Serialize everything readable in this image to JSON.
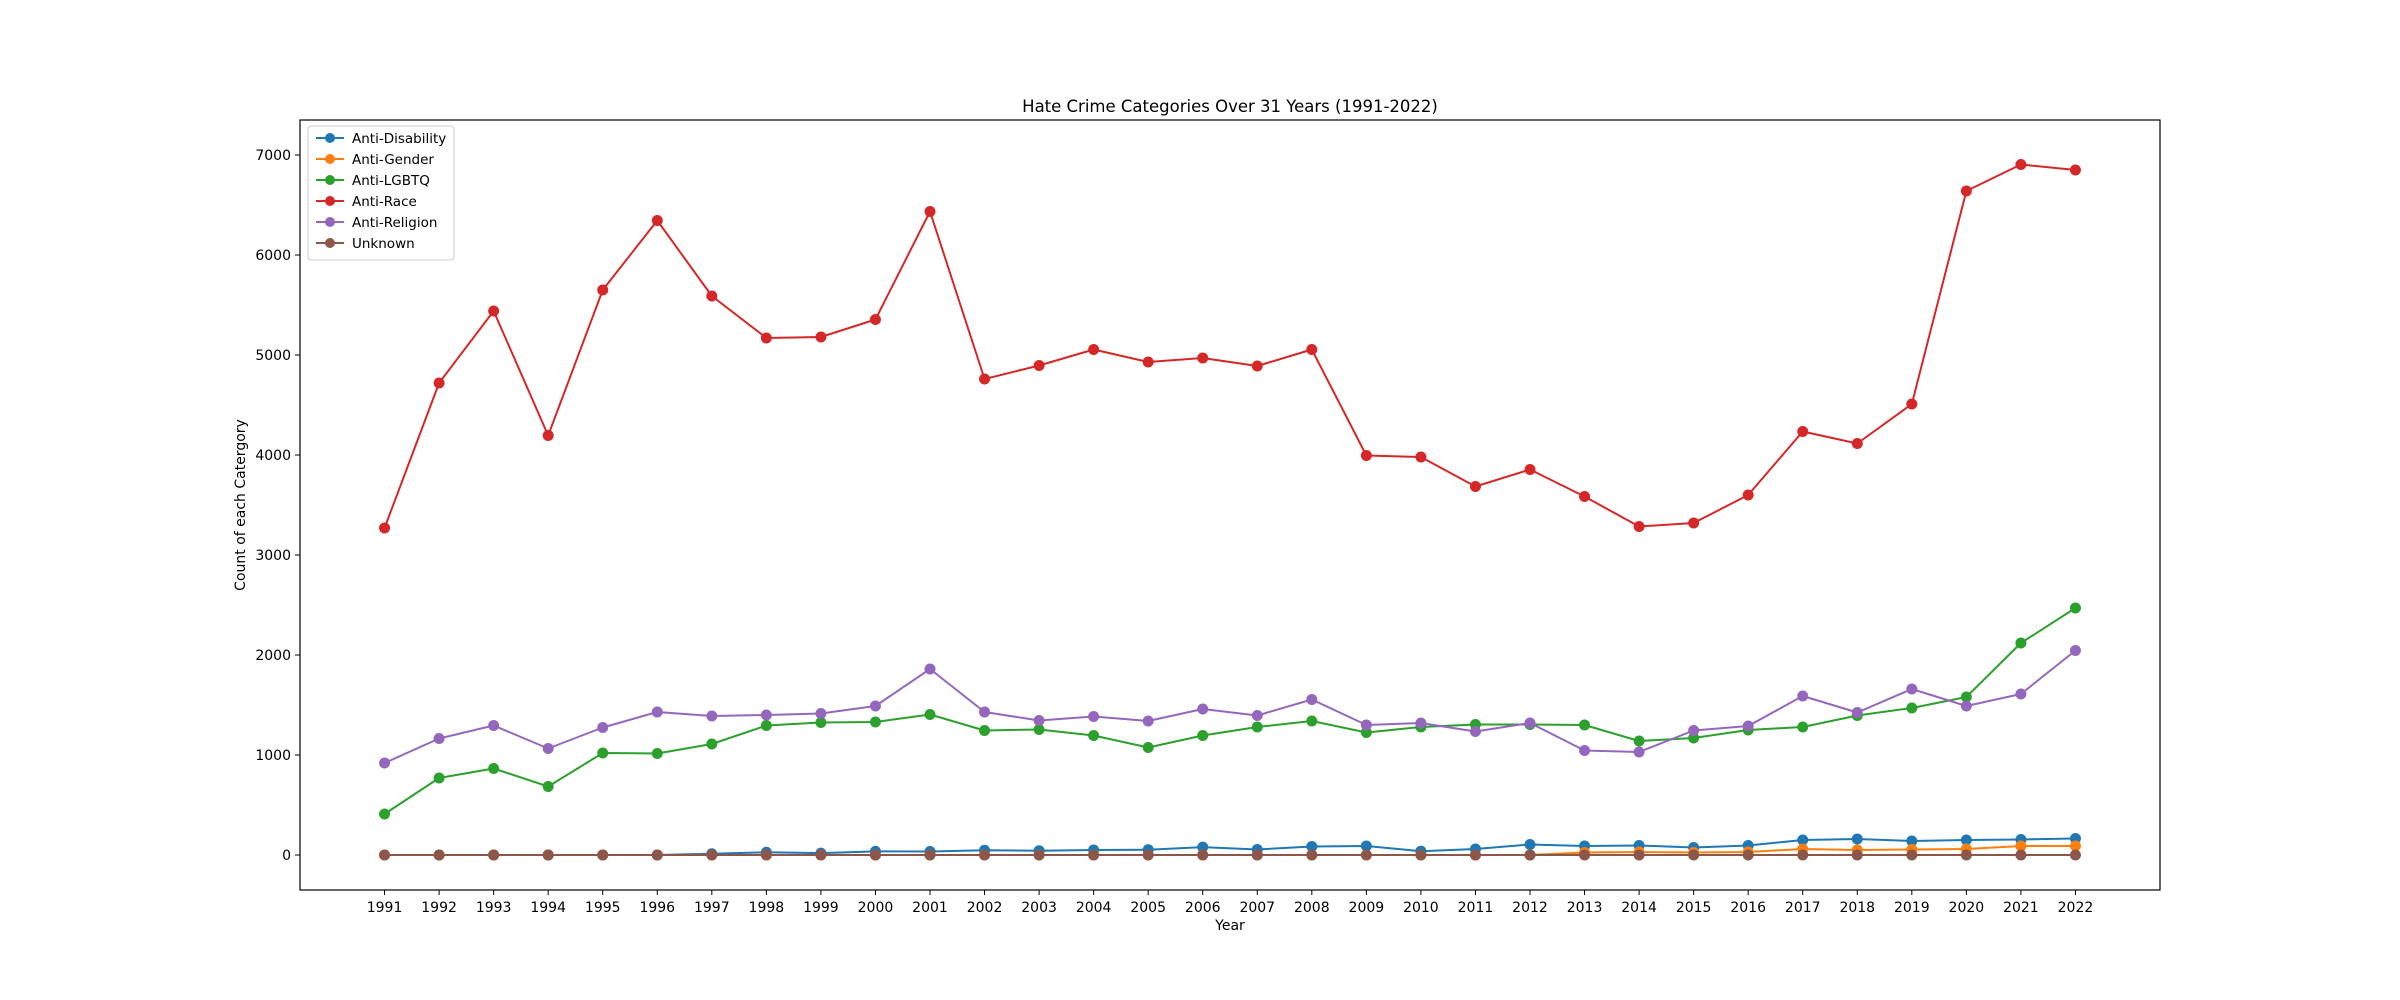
{
  "chart_data": {
    "type": "line",
    "title": "Hate Crime Categories Over 31 Years (1991-2022)",
    "xlabel": "Year",
    "ylabel": "Count of each Catergory",
    "x": [
      1991,
      1992,
      1993,
      1994,
      1995,
      1996,
      1997,
      1998,
      1999,
      2000,
      2001,
      2002,
      2003,
      2004,
      2005,
      2006,
      2007,
      2008,
      2009,
      2010,
      2011,
      2012,
      2013,
      2014,
      2015,
      2016,
      2017,
      2018,
      2019,
      2020,
      2021,
      2022
    ],
    "ylim": [
      -350,
      7350
    ],
    "yticks": [
      0,
      1000,
      2000,
      3000,
      4000,
      5000,
      6000,
      7000
    ],
    "grid": false,
    "legend_position": "upper-left",
    "series": [
      {
        "name": "Anti-Disability",
        "color": "#1f77b4",
        "values": [
          0,
          0,
          0,
          0,
          0,
          0,
          12,
          27,
          19,
          36,
          35,
          47,
          43,
          50,
          53,
          79,
          55,
          85,
          90,
          38,
          60,
          105,
          90,
          95,
          75,
          95,
          150,
          160,
          140,
          150,
          155,
          165
        ]
      },
      {
        "name": "Anti-Gender",
        "color": "#ff7f0e",
        "values": [
          0,
          0,
          0,
          0,
          0,
          0,
          0,
          0,
          0,
          0,
          0,
          0,
          0,
          0,
          0,
          0,
          0,
          0,
          0,
          0,
          0,
          0,
          25,
          30,
          25,
          30,
          60,
          50,
          55,
          60,
          90,
          90
        ]
      },
      {
        "name": "Anti-LGBTQ",
        "color": "#2ca02c",
        "values": [
          410,
          770,
          865,
          685,
          1020,
          1015,
          1110,
          1295,
          1325,
          1330,
          1405,
          1245,
          1255,
          1195,
          1075,
          1195,
          1280,
          1340,
          1225,
          1280,
          1305,
          1305,
          1300,
          1140,
          1170,
          1250,
          1280,
          1395,
          1470,
          1580,
          2120,
          2470
        ]
      },
      {
        "name": "Anti-Race",
        "color": "#d62728",
        "values": [
          3270,
          4720,
          5440,
          4195,
          5650,
          6345,
          5590,
          5170,
          5180,
          5355,
          6435,
          4760,
          4895,
          5055,
          4930,
          4970,
          4890,
          5055,
          3995,
          3980,
          3685,
          3855,
          3585,
          3285,
          3320,
          3600,
          4235,
          4115,
          4510,
          6640,
          6905,
          6850
        ]
      },
      {
        "name": "Anti-Religion",
        "color": "#9467bd",
        "values": [
          920,
          1165,
          1295,
          1065,
          1275,
          1430,
          1390,
          1400,
          1415,
          1490,
          1860,
          1430,
          1345,
          1385,
          1340,
          1460,
          1395,
          1555,
          1300,
          1320,
          1235,
          1320,
          1045,
          1030,
          1245,
          1290,
          1590,
          1425,
          1660,
          1490,
          1610,
          2045
        ]
      },
      {
        "name": "Unknown",
        "color": "#8c564b",
        "values": [
          0,
          0,
          0,
          0,
          0,
          0,
          0,
          0,
          0,
          0,
          0,
          0,
          0,
          0,
          0,
          0,
          0,
          0,
          0,
          0,
          0,
          0,
          0,
          0,
          0,
          0,
          0,
          0,
          0,
          0,
          0,
          0
        ]
      }
    ]
  }
}
